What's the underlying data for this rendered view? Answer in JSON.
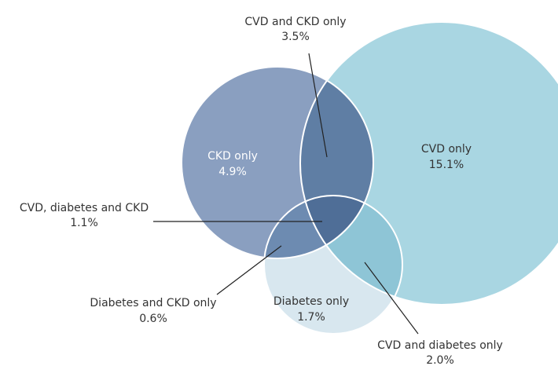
{
  "regions": [
    {
      "label": "CVD and CKD only",
      "value": "3.5%"
    },
    {
      "label": "CKD only",
      "value": "4.9%"
    },
    {
      "label": "CVD only",
      "value": "15.1%"
    },
    {
      "label": "CVD, diabetes and CKD",
      "value": "1.1%"
    },
    {
      "label": "Diabetes and CKD only",
      "value": "0.6%"
    },
    {
      "label": "Diabetes only",
      "value": "1.7%"
    },
    {
      "label": "CVD and diabetes only",
      "value": "2.0%"
    }
  ]
}
